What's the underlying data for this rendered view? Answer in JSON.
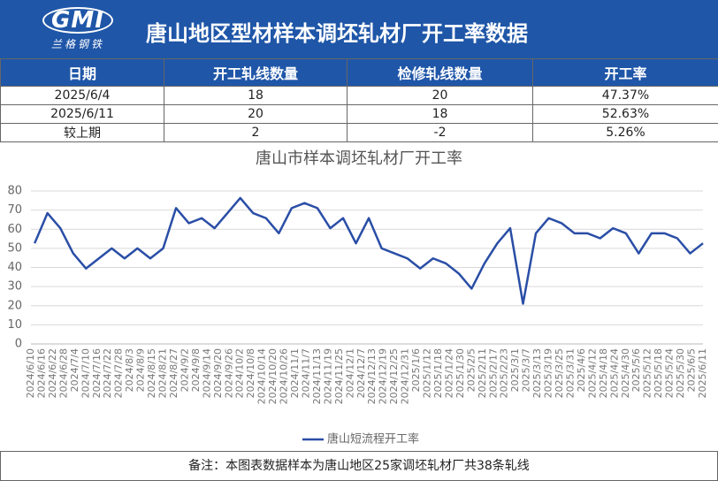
{
  "header": {
    "logo": "GMI",
    "logo_sub": "兰格钢铁",
    "title": "唐山地区型材样本调坯轧材厂开工率数据"
  },
  "table": {
    "columns": [
      "日期",
      "开工轧线数量",
      "检修轧线数量",
      "开工率"
    ],
    "rows": [
      [
        "2025/6/4",
        "18",
        "20",
        "47.37%"
      ],
      [
        "2025/6/11",
        "20",
        "18",
        "52.63%"
      ],
      [
        "较上期",
        "2",
        "-2",
        "5.26%"
      ]
    ]
  },
  "chart_data": {
    "type": "line",
    "title": "唐山市样本调坯轧材厂开工率",
    "x": [
      "2024/6/12",
      "2024/6/19",
      "2024/6/26",
      "2024/7/3",
      "2024/7/10",
      "2024/7/17",
      "2024/7/24",
      "2024/7/31",
      "2024/8/7",
      "2024/8/14",
      "2024/8/21",
      "2024/8/28",
      "2024/9/4",
      "2024/9/11",
      "2024/9/18",
      "2024/9/25",
      "2024/10/2",
      "2024/10/9",
      "2024/10/16",
      "2024/10/23",
      "2024/10/30",
      "2024/11/6",
      "2024/11/13",
      "2024/11/20",
      "2024/11/27",
      "2024/12/4",
      "2024/12/11",
      "2024/12/18",
      "2024/12/25",
      "2025/1/1",
      "2025/1/8",
      "2025/1/15",
      "2025/1/22",
      "2025/1/29",
      "2025/2/5",
      "2025/2/12",
      "2025/2/19",
      "2025/2/26",
      "2025/3/5",
      "2025/3/12",
      "2025/3/19",
      "2025/3/26",
      "2025/4/2",
      "2025/4/9",
      "2025/4/16",
      "2025/4/23",
      "2025/4/30",
      "2025/5/7",
      "2025/5/14",
      "2025/5/21",
      "2025/5/28",
      "2025/6/4",
      "2025/6/11"
    ],
    "series": [
      {
        "name": "唐山短流程开工率",
        "color": "#2a4ea6",
        "values": [
          52.63,
          68.42,
          60.53,
          47.37,
          39.47,
          44.74,
          50,
          44.74,
          50,
          44.74,
          50,
          71.05,
          63.16,
          65.79,
          60.53,
          68.42,
          76.32,
          68.42,
          65.79,
          57.89,
          71.05,
          73.68,
          71.05,
          60.53,
          65.79,
          52.63,
          65.79,
          50,
          47.37,
          44.74,
          39.47,
          44.74,
          42.11,
          36.84,
          28.95,
          42.11,
          52.63,
          60.53,
          21.05,
          57.89,
          65.79,
          63.16,
          57.89,
          57.89,
          55.26,
          60.53,
          57.89,
          47.37,
          57.89,
          57.89,
          55.26,
          47.37,
          52.63
        ]
      }
    ],
    "xlim": [
      "2024/6/10",
      "2025/6/11"
    ],
    "xticks": [
      "2024/6/10",
      "2024/6/16",
      "2024/6/22",
      "2024/6/28",
      "2024/7/4",
      "2024/7/10",
      "2024/7/16",
      "2024/7/22",
      "2024/7/28",
      "2024/8/3",
      "2024/8/9",
      "2024/8/15",
      "2024/8/21",
      "2024/8/27",
      "2024/9/2",
      "2024/9/8",
      "2024/9/14",
      "2024/9/20",
      "2024/9/26",
      "2024/10/2",
      "2024/10/8",
      "2024/10/14",
      "2024/10/20",
      "2024/10/26",
      "2024/11/1",
      "2024/11/7",
      "2024/11/13",
      "2024/11/19",
      "2024/11/25",
      "2024/12/1",
      "2024/12/7",
      "2024/12/13",
      "2024/12/19",
      "2024/12/25",
      "2024/12/31",
      "2025/1/6",
      "2025/1/12",
      "2025/1/18",
      "2025/1/24",
      "2025/1/30",
      "2025/2/5",
      "2025/2/11",
      "2025/2/17",
      "2025/2/23",
      "2025/3/1",
      "2025/3/7",
      "2025/3/13",
      "2025/3/19",
      "2025/3/25",
      "2025/3/31",
      "2025/4/6",
      "2025/4/12",
      "2025/4/18",
      "2025/4/24",
      "2025/4/30",
      "2025/5/6",
      "2025/5/12",
      "2025/5/18",
      "2025/5/24",
      "2025/5/30",
      "2025/6/5",
      "2025/6/11"
    ],
    "ylim": [
      0,
      80
    ],
    "yticks": [
      0,
      10,
      20,
      30,
      40,
      50,
      60,
      70,
      80
    ],
    "grid": true,
    "legend": "bottom"
  },
  "footer": {
    "note": "备注：本图表数据样本为唐山地区25家调坯轧材厂共38条轧线"
  }
}
